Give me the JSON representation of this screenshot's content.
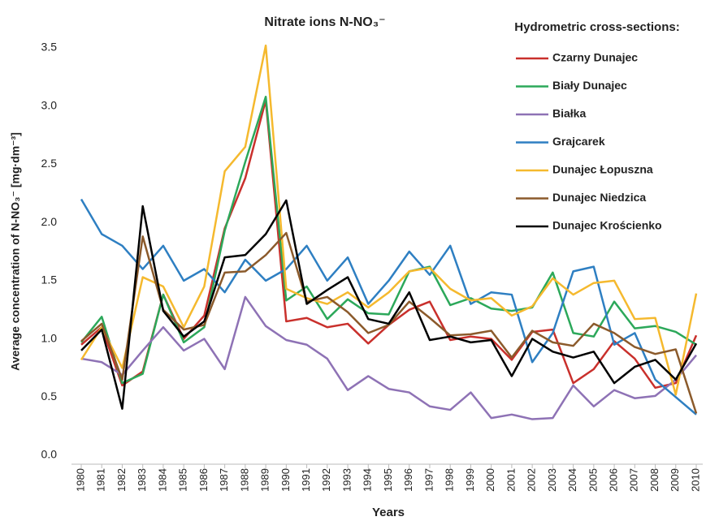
{
  "chart_data": {
    "type": "line",
    "title": "Nitrate ions N-NO₃⁻",
    "y_label": "Average concentration of  N-NO₃⁻ [mg·dm⁻³]",
    "x_label": "Years",
    "legend_title": "Hydrometric cross-sections:",
    "legend_position": "upper right",
    "grid": false,
    "categories": [
      "1980",
      "1981",
      "1982",
      "1983",
      "1984",
      "1985",
      "1986",
      "1987",
      "1988",
      "1989",
      "1990",
      "1991",
      "1992",
      "1993",
      "1994",
      "1995",
      "1996",
      "1997",
      "1998",
      "1999",
      "2000",
      "2001",
      "2002",
      "2003",
      "2004",
      "2005",
      "2006",
      "2007",
      "2008",
      "2009",
      "2010"
    ],
    "ylim": [
      0,
      3.5
    ],
    "yticks": [
      {
        "value": 0,
        "label": "0.0"
      },
      0.5,
      {
        "value": 1,
        "label": "1.0"
      },
      1.5,
      {
        "value": 2,
        "label": "2.0"
      },
      2.5,
      {
        "value": 3,
        "label": "3.0"
      },
      3.5
    ],
    "series": [
      {
        "name": "Czarny Dunajec",
        "color": "#c9302c",
        "values": [
          0.95,
          1.1,
          0.6,
          0.72,
          1.38,
          1.0,
          1.2,
          1.95,
          2.38,
          3.05,
          1.15,
          1.18,
          1.1,
          1.13,
          0.96,
          1.12,
          1.25,
          1.32,
          0.99,
          1.02,
          1.0,
          0.82,
          1.06,
          1.08,
          0.62,
          0.74,
          0.98,
          0.83,
          0.58,
          0.62,
          1.03
        ]
      },
      {
        "name": "Biały Dunajec",
        "color": "#2ca85a",
        "values": [
          0.97,
          1.19,
          0.62,
          0.7,
          1.38,
          0.97,
          1.1,
          1.93,
          2.52,
          3.08,
          1.33,
          1.45,
          1.17,
          1.34,
          1.22,
          1.21,
          1.58,
          1.62,
          1.29,
          1.35,
          1.26,
          1.24,
          1.27,
          1.57,
          1.05,
          1.02,
          1.32,
          1.09,
          1.11,
          1.06,
          0.95
        ]
      },
      {
        "name": "Białka",
        "color": "#8e72b5",
        "values": [
          0.83,
          0.8,
          0.69,
          0.9,
          1.1,
          0.9,
          1.0,
          0.74,
          1.36,
          1.11,
          0.99,
          0.95,
          0.83,
          0.56,
          0.68,
          0.57,
          0.54,
          0.42,
          0.39,
          0.54,
          0.32,
          0.35,
          0.31,
          0.32,
          0.6,
          0.42,
          0.56,
          0.49,
          0.51,
          0.65,
          0.86
        ]
      },
      {
        "name": "Grajcarek",
        "color": "#2e7fc2",
        "values": [
          2.2,
          1.9,
          1.8,
          1.6,
          1.8,
          1.5,
          1.6,
          1.4,
          1.68,
          1.5,
          1.6,
          1.8,
          1.5,
          1.7,
          1.3,
          1.5,
          1.75,
          1.55,
          1.8,
          1.3,
          1.4,
          1.38,
          0.8,
          1.05,
          1.58,
          1.62,
          0.95,
          1.05,
          0.65,
          0.5,
          0.35
        ]
      },
      {
        "name": "Dunajec Łopuszna",
        "color": "#f5b92e",
        "values": [
          0.82,
          1.1,
          0.75,
          1.53,
          1.45,
          1.1,
          1.45,
          2.44,
          2.65,
          3.52,
          1.43,
          1.35,
          1.3,
          1.4,
          1.27,
          1.4,
          1.58,
          1.61,
          1.43,
          1.33,
          1.35,
          1.2,
          1.28,
          1.52,
          1.38,
          1.48,
          1.5,
          1.17,
          1.18,
          0.52,
          1.39
        ]
      },
      {
        "name": "Dunajec Niedzica",
        "color": "#8b5a2b",
        "values": [
          0.98,
          1.13,
          0.65,
          1.88,
          1.25,
          1.08,
          1.12,
          1.57,
          1.58,
          1.72,
          1.91,
          1.32,
          1.36,
          1.23,
          1.05,
          1.12,
          1.32,
          1.18,
          1.03,
          1.04,
          1.07,
          0.84,
          1.07,
          0.97,
          0.94,
          1.13,
          1.05,
          0.93,
          0.87,
          0.91,
          0.36
        ]
      },
      {
        "name": "Dunajec Krościenko",
        "color": "#000000",
        "values": [
          0.9,
          1.08,
          0.4,
          2.14,
          1.24,
          1.02,
          1.15,
          1.7,
          1.72,
          1.9,
          2.19,
          1.3,
          1.42,
          1.53,
          1.17,
          1.13,
          1.4,
          0.99,
          1.02,
          0.97,
          0.99,
          0.68,
          1.0,
          0.89,
          0.84,
          0.89,
          0.62,
          0.76,
          0.82,
          0.65,
          0.96
        ]
      }
    ]
  }
}
